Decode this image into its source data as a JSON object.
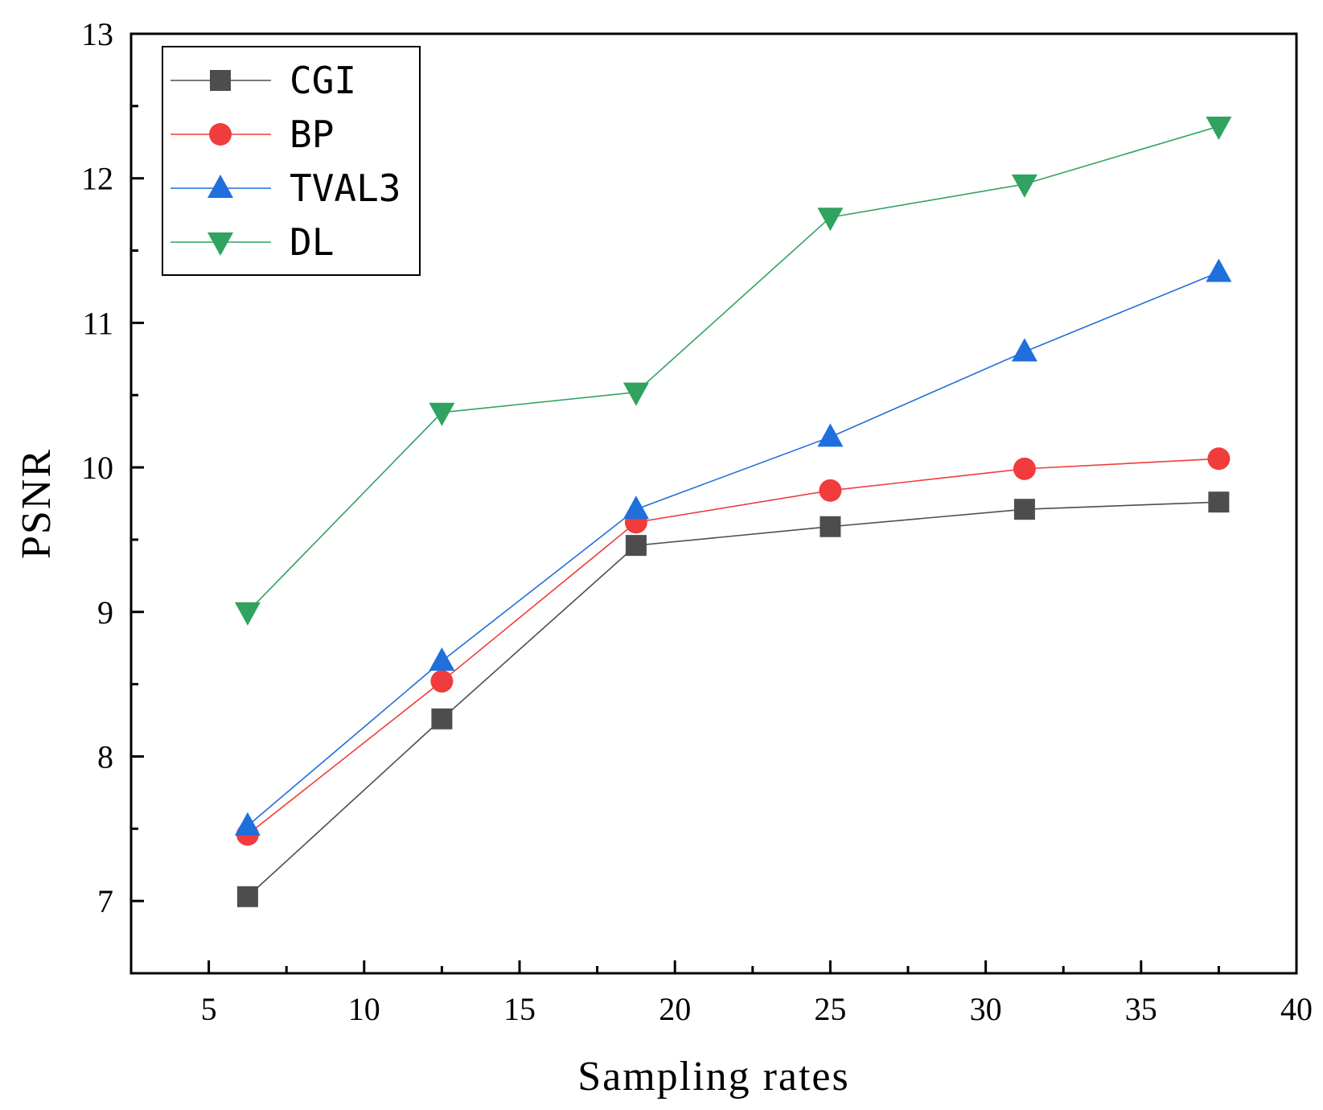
{
  "chart_data": {
    "type": "line",
    "title": "",
    "xlabel": "Sampling rates",
    "ylabel": "PSNR",
    "xlim": [
      2.5,
      40
    ],
    "ylim": [
      6.5,
      13
    ],
    "xticks": [
      5,
      10,
      15,
      20,
      25,
      30,
      35,
      40
    ],
    "yticks": [
      7,
      8,
      9,
      10,
      11,
      12,
      13
    ],
    "x": [
      6.25,
      12.5,
      18.75,
      25,
      31.25,
      37.5
    ],
    "legend_position": "top-left",
    "series": [
      {
        "name": "CGI",
        "marker": "square",
        "color": "#4d4d4d",
        "values": [
          7.03,
          8.26,
          9.46,
          9.59,
          9.71,
          9.76
        ]
      },
      {
        "name": "BP",
        "marker": "circle",
        "color": "#f03c3c",
        "values": [
          7.46,
          8.52,
          9.62,
          9.84,
          9.99,
          10.06
        ]
      },
      {
        "name": "TVAL3",
        "marker": "triangle-up",
        "color": "#1f6fdc",
        "values": [
          7.52,
          8.66,
          9.71,
          10.21,
          10.8,
          11.35
        ]
      },
      {
        "name": "DL",
        "marker": "triangle-down",
        "color": "#2fa35f",
        "values": [
          9.0,
          10.38,
          10.52,
          11.73,
          11.96,
          12.36
        ]
      }
    ]
  }
}
